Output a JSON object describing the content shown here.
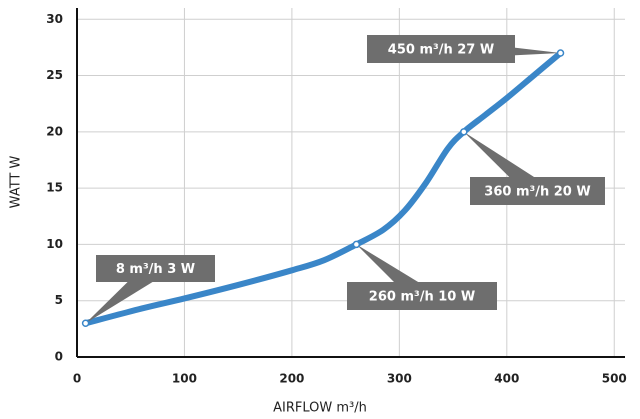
{
  "chart_data": {
    "type": "line",
    "x_label": "AIRFLOW m³/h",
    "y_label": "WATT W",
    "x": [
      8,
      60,
      100,
      150,
      200,
      230,
      260,
      285,
      305,
      325,
      345,
      360,
      380,
      400,
      425,
      450
    ],
    "series": [
      {
        "color": "#3a86c8",
        "values": [
          3,
          4.3,
          5.2,
          6.4,
          7.7,
          8.6,
          10,
          11.3,
          13,
          15.5,
          18.5,
          20,
          21.5,
          23,
          25,
          27
        ]
      }
    ],
    "annotations": [
      {
        "x": 8,
        "y": 3,
        "label": "8 m³/h 3 W"
      },
      {
        "x": 260,
        "y": 10,
        "label": "260 m³/h 10 W"
      },
      {
        "x": 360,
        "y": 20,
        "label": "360 m³/h 20 W"
      },
      {
        "x": 450,
        "y": 27,
        "label": "450 m³/h 27 W"
      }
    ],
    "xlim": [
      0,
      510
    ],
    "ylim": [
      0,
      31
    ],
    "xticks": [
      0,
      100,
      200,
      300,
      400,
      500
    ],
    "yticks": [
      0,
      5,
      10,
      15,
      20,
      25,
      30
    ],
    "grid": true
  }
}
